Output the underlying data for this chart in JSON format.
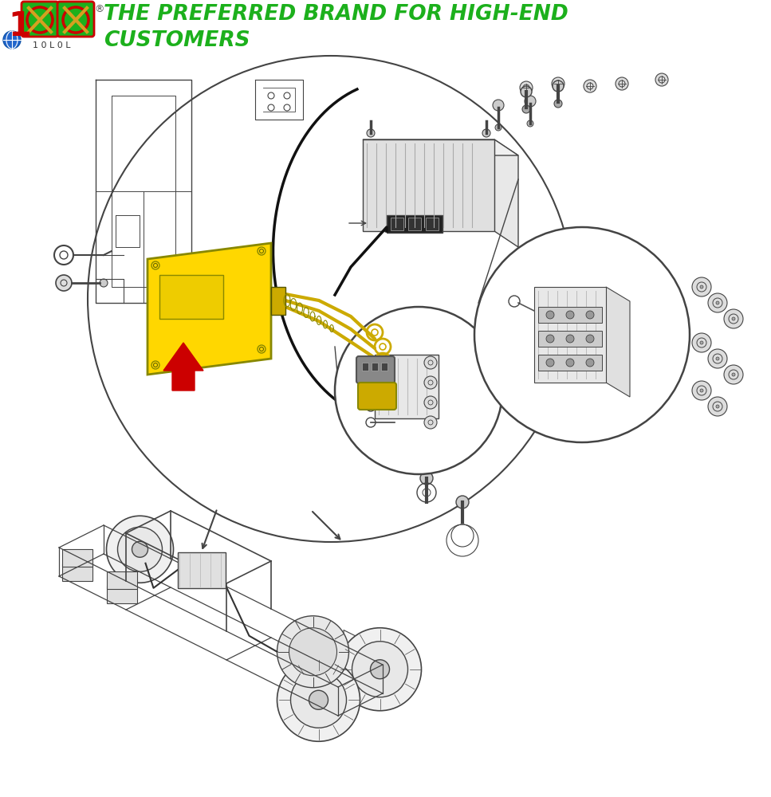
{
  "figsize": [
    9.67,
    10.0
  ],
  "dpi": 100,
  "bg_color": "#ffffff",
  "title_line1": "THE PREFERRED BRAND FOR HIGH-END",
  "title_line2": "CUSTOMERS",
  "title_color": "#1cb01c",
  "title_fontsize": 19,
  "lc": "#444444",
  "lw": 1.0,
  "yellow": "#FFD700",
  "red": "#CC0000",
  "dark": "#222222",
  "gray1": "#cccccc",
  "gray2": "#999999",
  "gray3": "#666666"
}
